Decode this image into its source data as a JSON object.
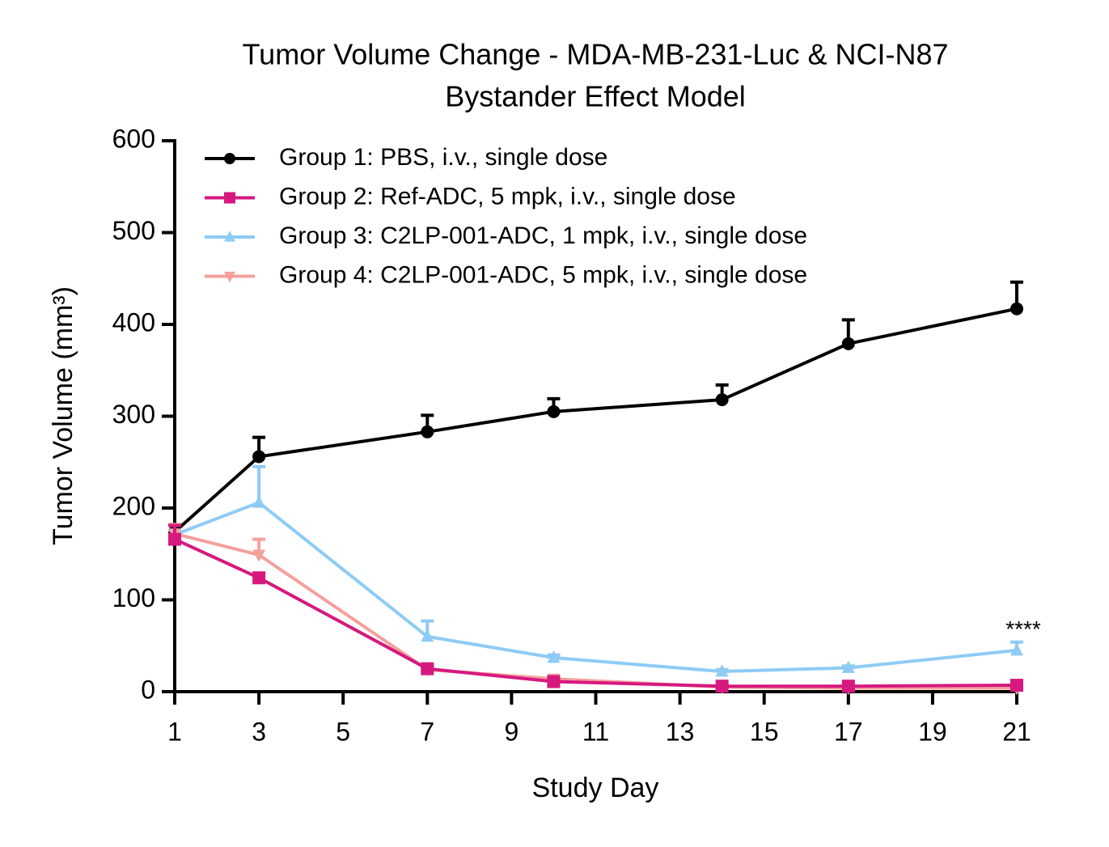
{
  "chart_data": {
    "type": "line",
    "title": [
      "Tumor Volume Change - MDA-MB-231-Luc & NCI-N87",
      "Bystander Effect Model"
    ],
    "xlabel": "Study Day",
    "ylabel": "Tumor Volume (mm³)",
    "annotation": "****",
    "x": [
      1,
      3,
      7,
      10,
      14,
      17,
      21
    ],
    "xlim": [
      1,
      21
    ],
    "xticks": [
      1,
      3,
      5,
      7,
      9,
      11,
      13,
      15,
      17,
      19,
      21
    ],
    "ylim": [
      0,
      600
    ],
    "yticks": [
      0,
      100,
      200,
      300,
      400,
      500,
      600
    ],
    "grid": false,
    "legend": "top-left",
    "series": [
      {
        "name": "Group 1: PBS, i.v., single dose",
        "color": "#000000",
        "marker": "circle",
        "values": [
          174,
          256,
          283,
          305,
          318,
          379,
          417
        ],
        "errors": [
          8,
          21,
          18,
          14,
          16,
          26,
          29
        ]
      },
      {
        "name": "Group 2: Ref-ADC, 5 mpk, i.v., single dose",
        "color": "#d6197f",
        "marker": "square",
        "values": [
          166,
          124,
          25,
          11,
          6,
          6,
          7
        ],
        "errors": [
          15,
          5,
          3,
          2,
          1,
          1,
          1
        ]
      },
      {
        "name": "Group 3: C2LP-001-ADC, 1 mpk, i.v., single dose",
        "color": "#8ecbf5",
        "marker": "triangle-up",
        "values": [
          171,
          206,
          60,
          37,
          22,
          26,
          45
        ],
        "errors": [
          5,
          39,
          17,
          3,
          2,
          2,
          9
        ]
      },
      {
        "name": "Group 4: C2LP-001-ADC, 5 mpk, i.v., single dose",
        "color": "#f4a09c",
        "marker": "triangle-down",
        "values": [
          172,
          149,
          24,
          14,
          5,
          4,
          4
        ],
        "errors": [
          10,
          17,
          2,
          2,
          1,
          1,
          1
        ]
      }
    ]
  }
}
